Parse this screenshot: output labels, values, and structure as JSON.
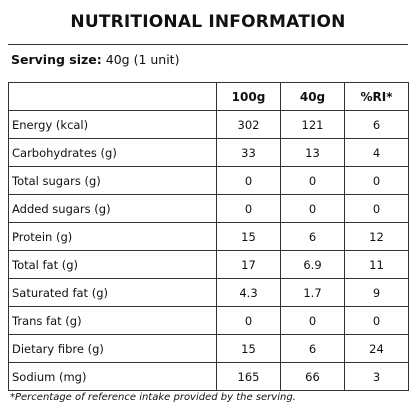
{
  "title": "NUTRITIONAL INFORMATION",
  "serving": {
    "label": "Serving size:",
    "value": "40g (1 unit)"
  },
  "table": {
    "headers": [
      "",
      "100g",
      "40g",
      "%RI*"
    ],
    "rows": [
      {
        "name": "Energy (kcal)",
        "per100": "302",
        "per40": "121",
        "ri": "6"
      },
      {
        "name": "Carbohydrates (g)",
        "per100": "33",
        "per40": "13",
        "ri": "4"
      },
      {
        "name": "Total sugars (g)",
        "per100": "0",
        "per40": "0",
        "ri": "0"
      },
      {
        "name": "Added sugars (g)",
        "per100": "0",
        "per40": "0",
        "ri": "0"
      },
      {
        "name": "Protein (g)",
        "per100": "15",
        "per40": "6",
        "ri": "12"
      },
      {
        "name": "Total fat (g)",
        "per100": "17",
        "per40": "6.9",
        "ri": "11"
      },
      {
        "name": "Saturated fat (g)",
        "per100": "4.3",
        "per40": "1.7",
        "ri": "9"
      },
      {
        "name": "Trans fat (g)",
        "per100": "0",
        "per40": "0",
        "ri": "0"
      },
      {
        "name": "Dietary fibre (g)",
        "per100": "15",
        "per40": "6",
        "ri": "24"
      },
      {
        "name": "Sodium (mg)",
        "per100": "165",
        "per40": "66",
        "ri": "3"
      }
    ]
  },
  "footnote": "*Percentage of reference intake provided by the serving."
}
